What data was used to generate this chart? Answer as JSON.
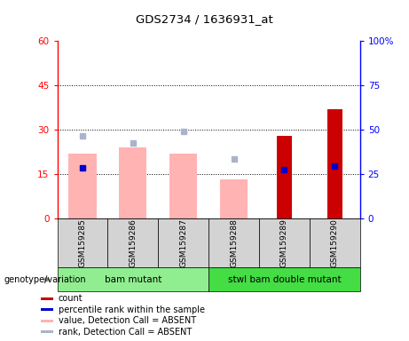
{
  "title": "GDS2734 / 1636931_at",
  "samples": [
    "GSM159285",
    "GSM159286",
    "GSM159287",
    "GSM159288",
    "GSM159289",
    "GSM159290"
  ],
  "count_values": [
    null,
    null,
    null,
    null,
    28,
    37
  ],
  "percentile_values": [
    28.5,
    null,
    null,
    null,
    27.5,
    29.5
  ],
  "value_absent": [
    22,
    24,
    22,
    13,
    null,
    null
  ],
  "rank_absent": [
    28,
    25.5,
    29.5,
    20,
    null,
    null
  ],
  "ylim_left": [
    0,
    60
  ],
  "ylim_right": [
    0,
    100
  ],
  "yticks_left": [
    0,
    15,
    30,
    45,
    60
  ],
  "yticks_right": [
    0,
    25,
    50,
    75,
    100
  ],
  "ytick_labels_left": [
    "0",
    "15",
    "30",
    "45",
    "60"
  ],
  "ytick_labels_right": [
    "0",
    "25",
    "50",
    "75",
    "100%"
  ],
  "group_label": "genotype/variation",
  "group1_label": "bam mutant",
  "group2_label": "stwl bam double mutant",
  "group1_color": "#90ee90",
  "group2_color": "#44dd44",
  "absent_bar_color": "#ffb3b3",
  "absent_rank_color": "#aab3cc",
  "present_count_color": "#cc0000",
  "present_rank_color": "#0000cc",
  "legend_labels": [
    "count",
    "percentile rank within the sample",
    "value, Detection Call = ABSENT",
    "rank, Detection Call = ABSENT"
  ],
  "legend_colors": [
    "#cc0000",
    "#0000cc",
    "#ffb3b3",
    "#aab3cc"
  ]
}
